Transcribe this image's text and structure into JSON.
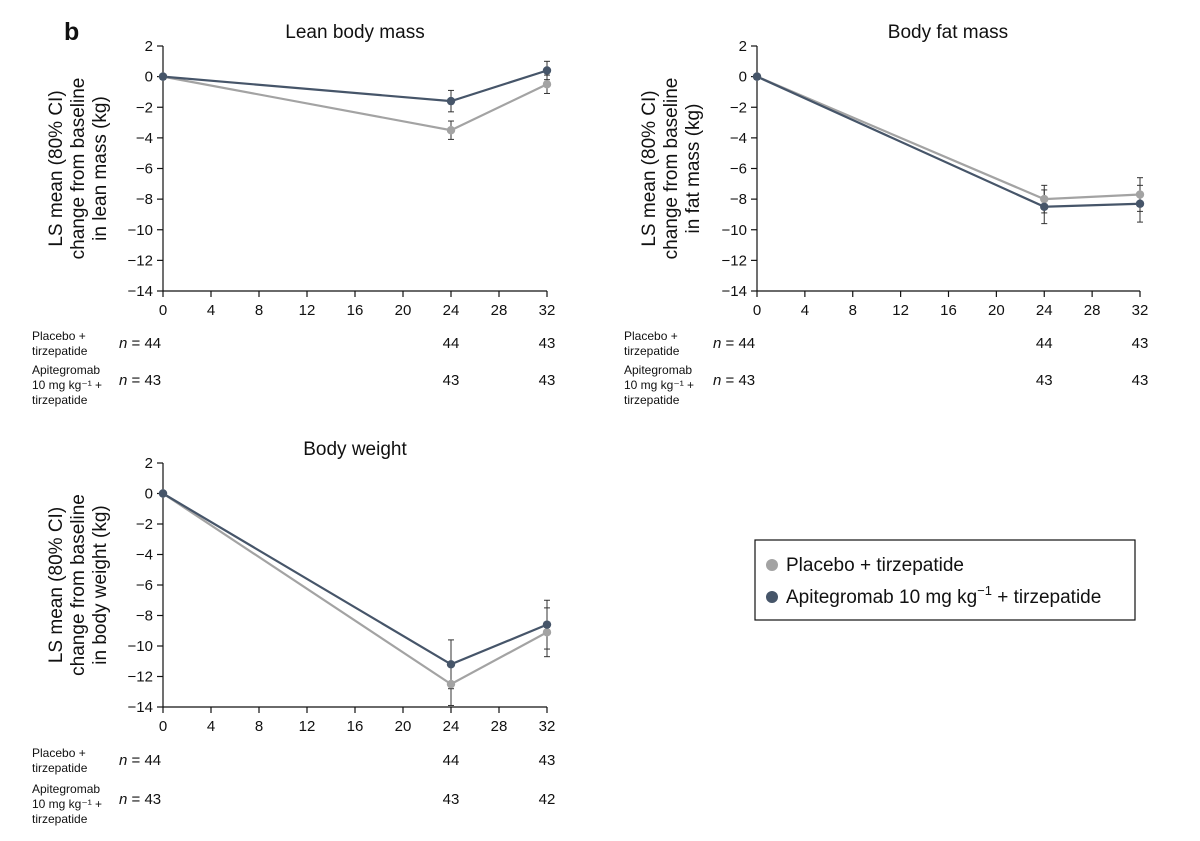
{
  "panel_label": "b",
  "legend": [
    {
      "text": "Placebo + tirzepatide",
      "color": "#a3a3a3"
    },
    {
      "text_main": "Apitegromab 10 mg kg",
      "text_sup": "−1",
      "text_tail": " + tirzepatide",
      "color": "#465569"
    }
  ],
  "chart_data": [
    {
      "type": "line",
      "title": "Lean body mass",
      "ylabel": [
        "LS mean (80% CI)",
        "change from baseline",
        "in lean mass (kg)"
      ],
      "xlabel": "",
      "x": [
        0,
        24,
        32
      ],
      "xticks": [
        0,
        4,
        8,
        12,
        16,
        20,
        24,
        28,
        32
      ],
      "xlim": [
        0,
        32
      ],
      "yticks": [
        2,
        0,
        -2,
        -4,
        -6,
        -8,
        -10,
        -12,
        -14
      ],
      "ylim": [
        -14,
        2
      ],
      "series": [
        {
          "key": "placebo",
          "color": "#a3a3a3",
          "values": [
            0,
            -3.5,
            -0.5
          ],
          "ci_low": [
            0,
            -4.1,
            -1.1
          ],
          "ci_high": [
            0,
            -2.9,
            0.1
          ]
        },
        {
          "key": "apitegromab",
          "color": "#465569",
          "values": [
            0,
            -1.6,
            0.4
          ],
          "ci_low": [
            0,
            -2.3,
            -0.2
          ],
          "ci_high": [
            0,
            -0.9,
            1.0
          ]
        }
      ],
      "n_table": {
        "rows": [
          {
            "label": [
              "Placebo +",
              "tirzepatide"
            ],
            "values": [
              "n = 44",
              "44",
              "43"
            ]
          },
          {
            "label": [
              "Apitegromab",
              "10 mg kg⁻¹ +",
              "tirzepatide"
            ],
            "values": [
              "n = 43",
              "43",
              "43"
            ]
          }
        ]
      }
    },
    {
      "type": "line",
      "title": "Body fat mass",
      "ylabel": [
        "LS mean (80% CI)",
        "change from baseline",
        "in fat mass (kg)"
      ],
      "xlabel": "",
      "x": [
        0,
        24,
        32
      ],
      "xticks": [
        0,
        4,
        8,
        12,
        16,
        20,
        24,
        28,
        32
      ],
      "xlim": [
        0,
        32
      ],
      "yticks": [
        2,
        0,
        -2,
        -4,
        -6,
        -8,
        -10,
        -12,
        -14
      ],
      "ylim": [
        -14,
        2
      ],
      "series": [
        {
          "key": "placebo",
          "color": "#a3a3a3",
          "values": [
            0,
            -8.0,
            -7.7
          ],
          "ci_low": [
            0,
            -8.9,
            -8.8
          ],
          "ci_high": [
            0,
            -7.1,
            -6.6
          ]
        },
        {
          "key": "apitegromab",
          "color": "#465569",
          "values": [
            0,
            -8.5,
            -8.3
          ],
          "ci_low": [
            0,
            -9.6,
            -9.5
          ],
          "ci_high": [
            0,
            -7.4,
            -7.1
          ]
        }
      ],
      "n_table": {
        "rows": [
          {
            "label": [
              "Placebo +",
              "tirzepatide"
            ],
            "values": [
              "n = 44",
              "44",
              "43"
            ]
          },
          {
            "label": [
              "Apitegromab",
              "10 mg kg⁻¹ +",
              "tirzepatide"
            ],
            "values": [
              "n = 43",
              "43",
              "43"
            ]
          }
        ]
      }
    },
    {
      "type": "line",
      "title": "Body weight",
      "ylabel": [
        "LS mean (80% CI)",
        "change from baseline",
        "in body weight (kg)"
      ],
      "xlabel": "",
      "x": [
        0,
        24,
        32
      ],
      "xticks": [
        0,
        4,
        8,
        12,
        16,
        20,
        24,
        28,
        32
      ],
      "xlim": [
        0,
        32
      ],
      "yticks": [
        2,
        0,
        -2,
        -4,
        -6,
        -8,
        -10,
        -12,
        -14
      ],
      "ylim": [
        -14,
        2
      ],
      "series": [
        {
          "key": "placebo",
          "color": "#a3a3a3",
          "values": [
            0,
            -12.5,
            -9.1
          ],
          "ci_low": [
            0,
            -13.9,
            -10.7
          ],
          "ci_high": [
            0,
            -11.1,
            -7.5
          ]
        },
        {
          "key": "apitegromab",
          "color": "#465569",
          "values": [
            0,
            -11.2,
            -8.6
          ],
          "ci_low": [
            0,
            -12.8,
            -10.2
          ],
          "ci_high": [
            0,
            -9.6,
            -7.0
          ]
        }
      ],
      "n_table": {
        "rows": [
          {
            "label": [
              "Placebo +",
              "tirzepatide"
            ],
            "values": [
              "n = 44",
              "44",
              "43"
            ]
          },
          {
            "label": [
              "Apitegromab",
              "10 mg kg⁻¹ +",
              "tirzepatide"
            ],
            "values": [
              "n = 43",
              "43",
              "42"
            ]
          }
        ]
      }
    }
  ]
}
